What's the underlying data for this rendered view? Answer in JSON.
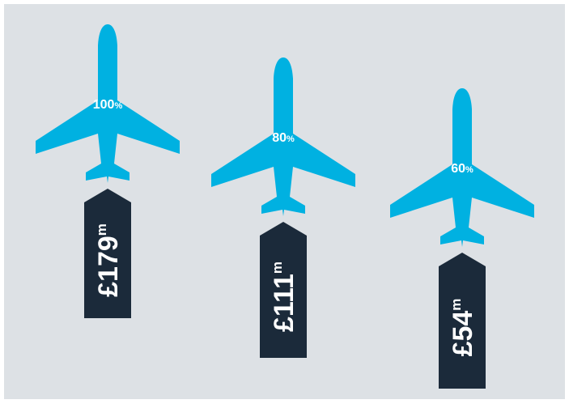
{
  "chart_data": {
    "type": "pictograph",
    "colors": {
      "background": "#dde1e5",
      "plane": "#00b1e1",
      "tag": "#1b2a3a",
      "text": "#ffffff"
    },
    "items": [
      {
        "percent": "100",
        "percent_unit": "%",
        "value": 179,
        "amount": "£179",
        "amount_unit": "m"
      },
      {
        "percent": "80",
        "percent_unit": "%",
        "value": 111,
        "amount": "£111",
        "amount_unit": "m"
      },
      {
        "percent": "60",
        "percent_unit": "%",
        "value": 54,
        "amount": "£54",
        "amount_unit": "m"
      }
    ]
  }
}
